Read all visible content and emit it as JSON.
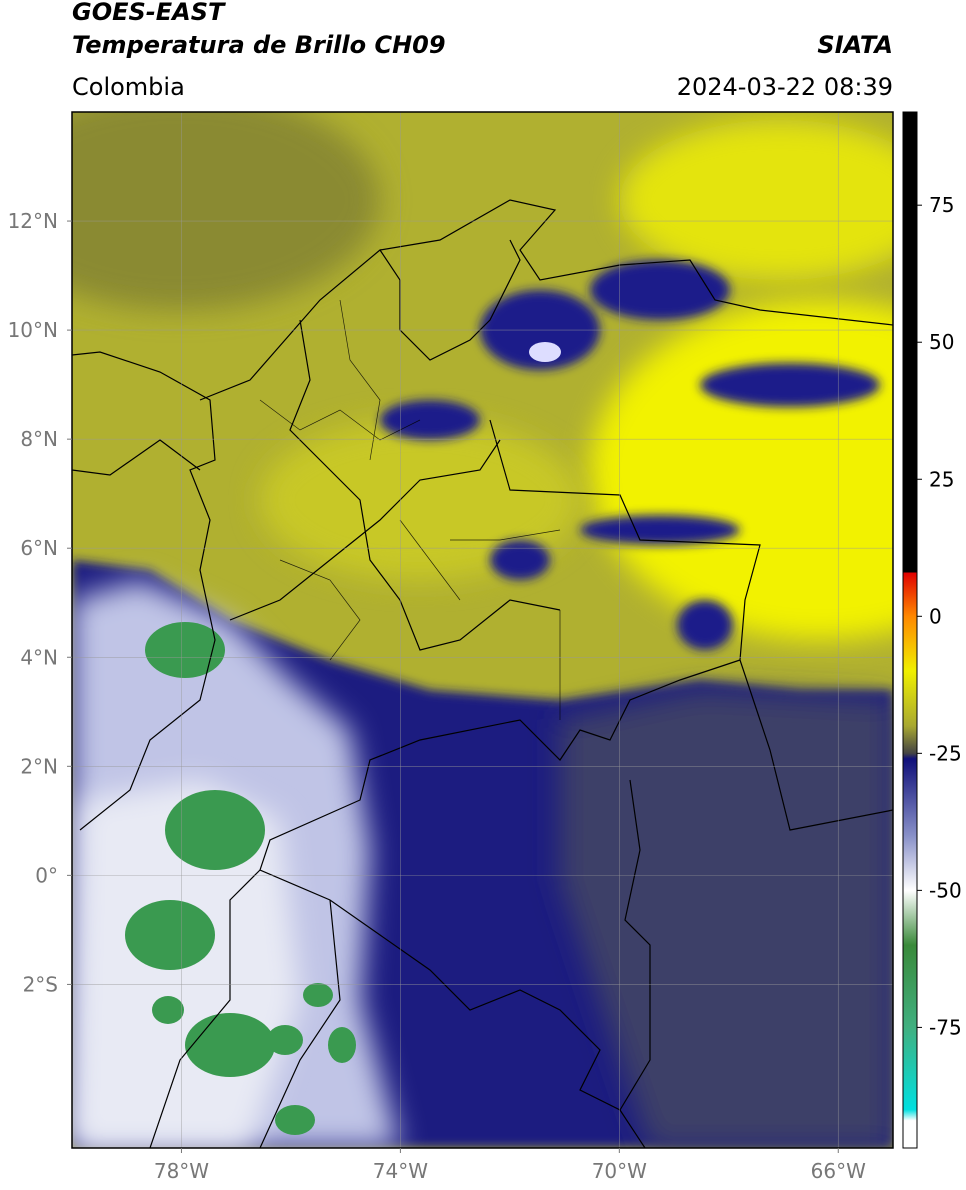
{
  "header": {
    "title": "GOES-EAST",
    "subtitle": "Temperatura de Brillo CH09",
    "source": "SIATA",
    "region": "Colombia",
    "datetime": "2024-03-22 08:39"
  },
  "map": {
    "xlim": [
      -80,
      -65
    ],
    "ylim": [
      -5,
      14
    ],
    "xticks": [
      {
        "value": -78,
        "label": "78°W"
      },
      {
        "value": -74,
        "label": "74°W"
      },
      {
        "value": -70,
        "label": "70°W"
      },
      {
        "value": -66,
        "label": "66°W"
      }
    ],
    "yticks": [
      {
        "value": 12,
        "label": "12°N"
      },
      {
        "value": 10,
        "label": "10°N"
      },
      {
        "value": 8,
        "label": "8°N"
      },
      {
        "value": 6,
        "label": "6°N"
      },
      {
        "value": 4,
        "label": "4°N"
      },
      {
        "value": 2,
        "label": "2°N"
      },
      {
        "value": 0,
        "label": "0°"
      },
      {
        "value": -2,
        "label": "2°S"
      }
    ],
    "grid": true
  },
  "colorbar": {
    "lim": [
      -97,
      92
    ],
    "ticks": [
      75,
      50,
      25,
      0,
      -25,
      -50,
      -75
    ],
    "colormap": [
      {
        "value": 92,
        "color": "#000000"
      },
      {
        "value": 8,
        "color": "#000000"
      },
      {
        "value": 8,
        "color": "#e00000"
      },
      {
        "value": 0,
        "color": "#ff8800"
      },
      {
        "value": -10,
        "color": "#f0f000"
      },
      {
        "value": -20,
        "color": "#a8a830"
      },
      {
        "value": -25,
        "color": "#444444"
      },
      {
        "value": -26,
        "color": "#10107a"
      },
      {
        "value": -40,
        "color": "#8890c8"
      },
      {
        "value": -50,
        "color": "#ffffff"
      },
      {
        "value": -60,
        "color": "#3a8a3a"
      },
      {
        "value": -75,
        "color": "#40b080"
      },
      {
        "value": -90,
        "color": "#00e0e0"
      },
      {
        "value": -92,
        "color": "#ffffff"
      },
      {
        "value": -97,
        "color": "#ffffff"
      }
    ]
  }
}
